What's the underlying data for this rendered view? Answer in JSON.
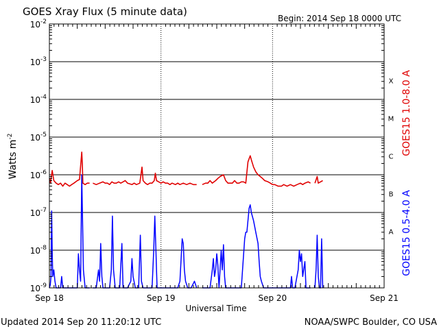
{
  "chart_data": {
    "type": "line",
    "title": "GOES Xray Flux (5 minute data)",
    "begin": "Begin:  2014 Sep 18 0000 UTC",
    "xlabel": "Universal Time",
    "ylabel": "Watts m",
    "ylabel_sup": "-2",
    "x_ticks": [
      "Sep 18",
      "Sep 19",
      "Sep 20",
      "Sep 21"
    ],
    "xlim_days": [
      0,
      3
    ],
    "y_scale": "log",
    "ylim": [
      1e-09,
      0.01
    ],
    "y_ticks": [
      {
        "base": "10",
        "exp": "-9"
      },
      {
        "base": "10",
        "exp": "-8"
      },
      {
        "base": "10",
        "exp": "-7"
      },
      {
        "base": "10",
        "exp": "-6"
      },
      {
        "base": "10",
        "exp": "-5"
      },
      {
        "base": "10",
        "exp": "-4"
      },
      {
        "base": "10",
        "exp": "-3"
      },
      {
        "base": "10",
        "exp": "-2"
      }
    ],
    "flare_classes": [
      {
        "label": "A",
        "decade": -8
      },
      {
        "label": "B",
        "decade": -7
      },
      {
        "label": "C",
        "decade": -6
      },
      {
        "label": "M",
        "decade": -5
      },
      {
        "label": "X",
        "decade": -4
      }
    ],
    "series": [
      {
        "name": "GOES15 1.0-8.0 A",
        "color": "#e00000",
        "points": [
          [
            0.0,
            8e-07
          ],
          [
            0.01,
            6e-07
          ],
          [
            0.025,
            1.3e-06
          ],
          [
            0.04,
            7e-07
          ],
          [
            0.06,
            6e-07
          ],
          [
            0.08,
            5.5e-07
          ],
          [
            0.1,
            6e-07
          ],
          [
            0.12,
            5e-07
          ],
          [
            0.14,
            6e-07
          ],
          [
            0.16,
            5.5e-07
          ],
          [
            0.18,
            5e-07
          ],
          [
            0.2,
            5.5e-07
          ],
          [
            0.22,
            6e-07
          ],
          [
            0.25,
            7e-07
          ],
          [
            0.27,
            7.5e-07
          ],
          [
            0.29,
            4e-06
          ],
          [
            0.295,
            2e-06
          ],
          [
            0.3,
            6e-07
          ],
          [
            0.32,
            5.5e-07
          ],
          [
            0.34,
            6e-07
          ],
          [
            0.36,
            6e-07
          ],
          null,
          [
            0.39,
            6e-07
          ],
          [
            0.42,
            5.5e-07
          ],
          [
            0.45,
            6e-07
          ],
          [
            0.48,
            6.5e-07
          ],
          [
            0.5,
            6e-07
          ],
          [
            0.52,
            6e-07
          ],
          [
            0.54,
            5.5e-07
          ],
          [
            0.56,
            6.5e-07
          ],
          [
            0.58,
            6e-07
          ],
          [
            0.6,
            6e-07
          ],
          [
            0.62,
            6.5e-07
          ],
          [
            0.64,
            6e-07
          ],
          [
            0.66,
            6.5e-07
          ],
          [
            0.68,
            7e-07
          ],
          [
            0.7,
            6e-07
          ],
          [
            0.74,
            5.5e-07
          ],
          [
            0.76,
            6e-07
          ],
          [
            0.78,
            5.5e-07
          ],
          [
            0.81,
            6e-07
          ],
          [
            0.83,
            1.6e-06
          ],
          [
            0.84,
            7e-07
          ],
          [
            0.86,
            6e-07
          ],
          [
            0.88,
            5.5e-07
          ],
          [
            0.9,
            6e-07
          ],
          [
            0.92,
            6e-07
          ],
          [
            0.94,
            7e-07
          ],
          [
            0.95,
            1.1e-06
          ],
          [
            0.96,
            7e-07
          ],
          [
            0.98,
            6.5e-07
          ],
          [
            1.0,
            6e-07
          ],
          [
            1.02,
            6.5e-07
          ],
          [
            1.04,
            6e-07
          ],
          [
            1.06,
            6e-07
          ],
          [
            1.08,
            5.5e-07
          ],
          [
            1.1,
            6e-07
          ],
          [
            1.13,
            5.5e-07
          ],
          [
            1.15,
            6e-07
          ],
          [
            1.17,
            5.5e-07
          ],
          [
            1.2,
            6e-07
          ],
          [
            1.23,
            5.5e-07
          ],
          [
            1.26,
            6e-07
          ],
          [
            1.29,
            5.5e-07
          ],
          [
            1.32,
            5.5e-07
          ],
          null,
          [
            1.37,
            5.5e-07
          ],
          [
            1.4,
            6e-07
          ],
          [
            1.42,
            6e-07
          ],
          [
            1.44,
            7e-07
          ],
          [
            1.46,
            6e-07
          ],
          [
            1.49,
            7e-07
          ],
          [
            1.51,
            8e-07
          ],
          [
            1.53,
            9e-07
          ],
          [
            1.56,
            1e-06
          ],
          [
            1.58,
            7e-07
          ],
          [
            1.6,
            6e-07
          ],
          [
            1.62,
            6e-07
          ],
          [
            1.64,
            6e-07
          ],
          [
            1.66,
            7e-07
          ],
          [
            1.68,
            6e-07
          ],
          [
            1.7,
            6e-07
          ],
          [
            1.72,
            6.5e-07
          ],
          [
            1.74,
            6.5e-07
          ],
          [
            1.76,
            6e-07
          ],
          [
            1.78,
            2.2e-06
          ],
          [
            1.8,
            3.2e-06
          ],
          [
            1.81,
            2.5e-06
          ],
          [
            1.83,
            1.6e-06
          ],
          [
            1.85,
            1.2e-06
          ],
          [
            1.87,
            1e-06
          ],
          [
            1.89,
            9e-07
          ],
          [
            1.91,
            8e-07
          ],
          [
            1.93,
            7e-07
          ],
          [
            1.96,
            6.5e-07
          ],
          [
            1.98,
            6e-07
          ],
          [
            2.0,
            5.5e-07
          ],
          [
            2.02,
            5.5e-07
          ],
          [
            2.05,
            5e-07
          ],
          [
            2.08,
            5e-07
          ],
          [
            2.1,
            5.5e-07
          ],
          [
            2.13,
            5e-07
          ],
          [
            2.16,
            5.5e-07
          ],
          [
            2.19,
            5e-07
          ],
          [
            2.22,
            5.5e-07
          ],
          [
            2.25,
            6e-07
          ],
          [
            2.27,
            5.5e-07
          ],
          [
            2.29,
            6e-07
          ],
          [
            2.32,
            6.5e-07
          ],
          [
            2.34,
            6e-07
          ],
          null,
          [
            2.38,
            6e-07
          ],
          [
            2.4,
            9e-07
          ],
          [
            2.41,
            6e-07
          ],
          [
            2.43,
            6.5e-07
          ],
          [
            2.45,
            7e-07
          ]
        ]
      },
      {
        "name": "GOES15 0.5-4.0 A",
        "color": "#0000ff",
        "points": [
          [
            0.0,
            1e-09
          ],
          [
            0.008,
            1.2e-09
          ],
          [
            0.015,
            2e-09
          ],
          [
            0.02,
            1.1e-07
          ],
          [
            0.025,
            1e-08
          ],
          [
            0.03,
            2e-09
          ],
          [
            0.04,
            3e-09
          ],
          [
            0.05,
            1.5e-09
          ],
          [
            0.06,
            1e-09
          ],
          [
            0.08,
            1e-09
          ],
          [
            0.1,
            1e-09
          ],
          [
            0.11,
            2e-09
          ],
          [
            0.12,
            1e-09
          ],
          [
            0.15,
            1e-09
          ],
          [
            0.18,
            1e-09
          ],
          [
            0.2,
            1e-09
          ],
          [
            0.22,
            1e-09
          ],
          [
            0.25,
            1e-09
          ],
          [
            0.26,
            8e-09
          ],
          [
            0.27,
            3e-09
          ],
          [
            0.28,
            1.5e-09
          ],
          [
            0.29,
            1e-06
          ],
          [
            0.3,
            2e-08
          ],
          [
            0.305,
            3e-09
          ],
          [
            0.32,
            1e-09
          ],
          [
            0.34,
            1e-09
          ],
          [
            0.36,
            1e-09
          ],
          null,
          [
            0.39,
            1e-09
          ],
          [
            0.42,
            1e-09
          ],
          [
            0.44,
            3e-09
          ],
          [
            0.45,
            1.5e-09
          ],
          [
            0.46,
            1.5e-08
          ],
          [
            0.47,
            2e-09
          ],
          [
            0.48,
            1e-09
          ],
          [
            0.5,
            1e-09
          ],
          [
            0.52,
            1e-09
          ],
          [
            0.54,
            1e-09
          ],
          [
            0.555,
            3e-09
          ],
          [
            0.565,
            8e-08
          ],
          [
            0.575,
            3e-09
          ],
          [
            0.59,
            1e-09
          ],
          [
            0.61,
            1e-09
          ],
          [
            0.63,
            1e-09
          ],
          [
            0.65,
            1.5e-08
          ],
          [
            0.66,
            1e-09
          ],
          [
            0.68,
            1e-09
          ],
          [
            0.7,
            1e-09
          ],
          [
            0.73,
            1.5e-09
          ],
          [
            0.74,
            6e-09
          ],
          [
            0.75,
            2e-09
          ],
          [
            0.77,
            1e-09
          ],
          [
            0.8,
            1e-09
          ],
          [
            0.815,
            2.5e-08
          ],
          [
            0.825,
            1.5e-09
          ],
          [
            0.84,
            1e-09
          ],
          [
            0.86,
            1e-09
          ],
          [
            0.88,
            1e-09
          ],
          [
            0.9,
            1e-09
          ],
          [
            0.92,
            1e-09
          ],
          [
            0.935,
            1e-08
          ],
          [
            0.945,
            8e-08
          ],
          [
            0.955,
            1e-08
          ],
          [
            0.965,
            1e-09
          ],
          [
            0.98,
            1e-09
          ],
          [
            1.0,
            1e-09
          ],
          [
            1.02,
            1e-09
          ],
          [
            1.04,
            1e-09
          ],
          [
            1.06,
            1e-09
          ],
          [
            1.08,
            1e-09
          ],
          [
            1.1,
            1e-09
          ],
          [
            1.12,
            1e-09
          ],
          [
            1.15,
            1e-09
          ],
          [
            1.17,
            1.5e-09
          ],
          [
            1.19,
            2e-08
          ],
          [
            1.2,
            1.5e-08
          ],
          [
            1.21,
            3e-09
          ],
          [
            1.22,
            1.5e-09
          ],
          [
            1.24,
            1e-09
          ],
          [
            1.27,
            1e-09
          ],
          [
            1.3,
            1.5e-09
          ],
          [
            1.32,
            1e-09
          ],
          null,
          [
            1.37,
            1e-09
          ],
          [
            1.4,
            1e-09
          ],
          [
            1.42,
            1e-09
          ],
          [
            1.44,
            1e-09
          ],
          [
            1.46,
            3e-09
          ],
          [
            1.47,
            6e-09
          ],
          [
            1.48,
            2e-09
          ],
          [
            1.49,
            3e-09
          ],
          [
            1.5,
            8e-09
          ],
          [
            1.51,
            4e-09
          ],
          [
            1.52,
            1e-09
          ],
          [
            1.54,
            1e-08
          ],
          [
            1.55,
            3e-09
          ],
          [
            1.56,
            1.4e-08
          ],
          [
            1.57,
            2e-09
          ],
          [
            1.58,
            1e-09
          ],
          [
            1.6,
            1e-09
          ],
          [
            1.62,
            1e-09
          ],
          [
            1.64,
            1e-09
          ],
          [
            1.66,
            1e-09
          ],
          [
            1.69,
            1e-09
          ],
          [
            1.72,
            1e-09
          ],
          [
            1.75,
            2e-08
          ],
          [
            1.76,
            3e-08
          ],
          [
            1.77,
            3e-08
          ],
          [
            1.79,
            1.3e-07
          ],
          [
            1.8,
            1.6e-07
          ],
          [
            1.81,
            1e-07
          ],
          [
            1.83,
            6e-08
          ],
          [
            1.85,
            3e-08
          ],
          [
            1.87,
            1.5e-08
          ],
          [
            1.88,
            5e-09
          ],
          [
            1.89,
            2e-09
          ],
          [
            1.9,
            1.5e-09
          ],
          [
            1.92,
            1e-09
          ],
          [
            1.94,
            1e-09
          ],
          [
            1.96,
            1e-09
          ],
          [
            1.98,
            1e-09
          ],
          [
            2.0,
            1e-09
          ],
          [
            2.02,
            1e-09
          ],
          [
            2.04,
            1e-09
          ],
          [
            2.06,
            1e-09
          ],
          [
            2.08,
            1e-09
          ],
          [
            2.1,
            1e-09
          ],
          [
            2.12,
            1e-09
          ],
          [
            2.14,
            1e-09
          ],
          [
            2.16,
            1e-09
          ],
          [
            2.17,
            2e-09
          ],
          [
            2.18,
            1e-09
          ],
          [
            2.2,
            1e-09
          ],
          [
            2.23,
            3e-09
          ],
          [
            2.24,
            1e-08
          ],
          [
            2.25,
            5e-09
          ],
          [
            2.26,
            8e-09
          ],
          [
            2.27,
            2e-09
          ],
          [
            2.29,
            5e-09
          ],
          [
            2.3,
            1e-09
          ],
          [
            2.32,
            1e-09
          ],
          [
            2.34,
            1e-09
          ],
          null,
          [
            2.38,
            1e-09
          ],
          [
            2.39,
            3e-09
          ],
          [
            2.4,
            2.5e-08
          ],
          [
            2.41,
            2e-09
          ],
          [
            2.42,
            1e-09
          ],
          [
            2.43,
            1e-09
          ],
          [
            2.44,
            2e-08
          ],
          [
            2.45,
            1e-09
          ]
        ]
      }
    ]
  },
  "footer": {
    "updated": "Updated 2014 Sep 20 11:20:12 UTC",
    "source": "NOAA/SWPC Boulder, CO USA"
  }
}
